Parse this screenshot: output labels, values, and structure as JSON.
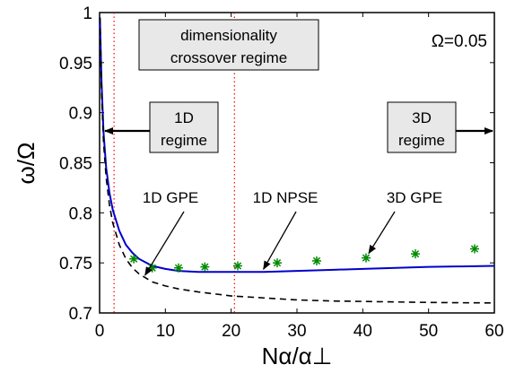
{
  "chart_data": {
    "type": "line",
    "xlabel": "Nα/α⊥",
    "ylabel": "ω/Ω",
    "xlim": [
      0,
      60
    ],
    "ylim": [
      0.7,
      1.0
    ],
    "x_ticks": [
      "0",
      "10",
      "20",
      "30",
      "40",
      "50",
      "60"
    ],
    "y_ticks": [
      "0.7",
      "0.75",
      "0.8",
      "0.85",
      "0.9",
      "0.95",
      "1"
    ],
    "grid": false,
    "parameter_label": "Ω=0.05",
    "series": [
      {
        "name": "1D NPSE",
        "style": "solid",
        "color": "#0000cc",
        "x": [
          0.05,
          0.3,
          0.6,
          1.0,
          1.5,
          2.0,
          3.0,
          4.0,
          5.0,
          6.0,
          8.0,
          10.0,
          12.0,
          15.0,
          20.0,
          25.0,
          30.0,
          35.0,
          40.0,
          45.0,
          50.0,
          55.0,
          60.0
        ],
        "y": [
          0.995,
          0.93,
          0.88,
          0.845,
          0.82,
          0.803,
          0.782,
          0.768,
          0.76,
          0.754,
          0.747,
          0.744,
          0.742,
          0.741,
          0.741,
          0.741,
          0.742,
          0.743,
          0.744,
          0.745,
          0.746,
          0.7465,
          0.747
        ]
      },
      {
        "name": "1D GPE",
        "style": "dashed",
        "color": "#000000",
        "x": [
          0.05,
          0.3,
          0.6,
          1.0,
          1.5,
          2.0,
          3.0,
          4.0,
          5.0,
          6.0,
          8.0,
          10.0,
          12.0,
          15.0,
          20.0,
          25.0,
          30.0,
          35.0,
          40.0,
          45.0,
          50.0,
          55.0,
          60.0
        ],
        "y": [
          0.995,
          0.92,
          0.87,
          0.835,
          0.808,
          0.79,
          0.768,
          0.754,
          0.745,
          0.739,
          0.731,
          0.727,
          0.724,
          0.721,
          0.717,
          0.715,
          0.713,
          0.712,
          0.7115,
          0.711,
          0.7105,
          0.7102,
          0.71
        ]
      },
      {
        "name": "3D GPE",
        "style": "markers",
        "marker": "asterisk",
        "color": "#008a00",
        "x": [
          5.2,
          8.0,
          12.0,
          16.0,
          21.0,
          27.0,
          33.0,
          40.5,
          48.0,
          57.0
        ],
        "y": [
          0.754,
          0.745,
          0.745,
          0.746,
          0.747,
          0.75,
          0.752,
          0.755,
          0.759,
          0.764
        ]
      }
    ],
    "vertical_lines": [
      {
        "x": 2.2,
        "style": "dotted",
        "color": "#ff0000"
      },
      {
        "x": 20.5,
        "style": "dotted",
        "color": "#ff0000"
      }
    ],
    "annotations": [
      {
        "text_lines": [
          "dimensionality",
          "crossover regime"
        ],
        "boxed": true
      },
      {
        "text_lines": [
          "1D",
          "regime"
        ],
        "boxed": true,
        "arrow": "left"
      },
      {
        "text_lines": [
          "3D",
          "regime"
        ],
        "boxed": true,
        "arrow": "right"
      },
      {
        "text_lines": [
          "1D GPE"
        ],
        "boxed": false,
        "points_to": {
          "x": 6.5,
          "y": 0.735
        }
      },
      {
        "text_lines": [
          "1D NPSE"
        ],
        "boxed": false,
        "points_to": {
          "x": 24.5,
          "y": 0.741
        }
      },
      {
        "text_lines": [
          "3D GPE"
        ],
        "boxed": false,
        "points_to": {
          "x": 40.5,
          "y": 0.755
        }
      }
    ]
  }
}
